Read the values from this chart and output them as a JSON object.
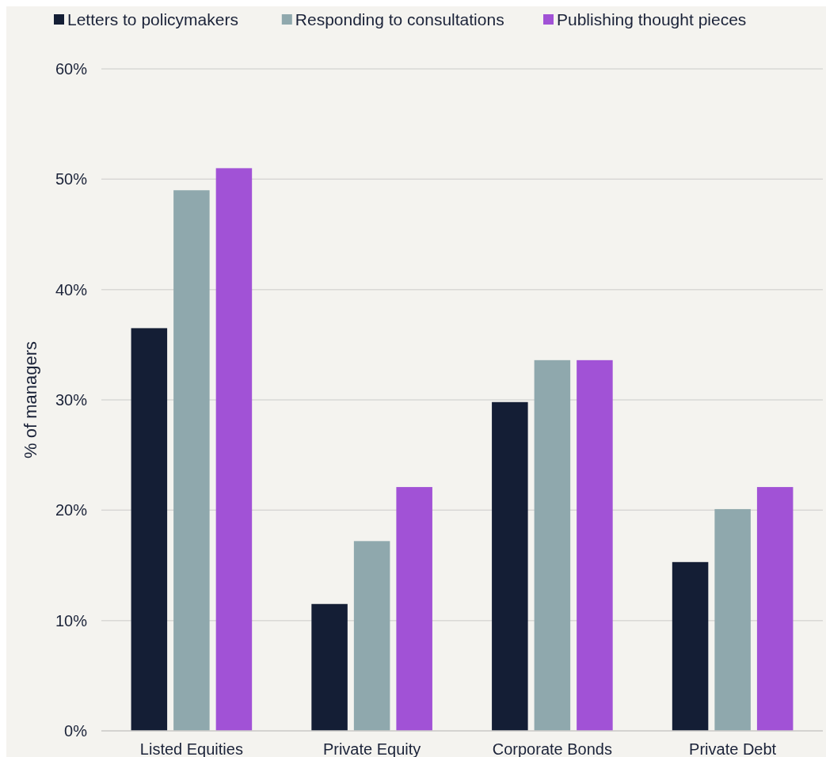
{
  "chart_data": {
    "type": "bar",
    "ylabel": "% of managers",
    "categories": [
      "Listed Equities",
      "Private Equity",
      "Corporate Bonds",
      "Private Debt"
    ],
    "series": [
      {
        "name": "Letters to policymakers",
        "color": "#141e35",
        "values": [
          36.5,
          11.5,
          29.8,
          15.3
        ]
      },
      {
        "name": "Responding to consultations",
        "color": "#8fa8ad",
        "values": [
          49.0,
          17.2,
          33.6,
          20.1
        ]
      },
      {
        "name": "Publishing thought pieces",
        "color": "#a152d6",
        "values": [
          51.0,
          22.1,
          33.6,
          22.1
        ]
      }
    ],
    "ylim": [
      0,
      60
    ],
    "yticks": [
      {
        "value": 0,
        "label": "0%"
      },
      {
        "value": 10,
        "label": "10%"
      },
      {
        "value": 20,
        "label": "20%"
      },
      {
        "value": 30,
        "label": "30%"
      },
      {
        "value": 40,
        "label": "40%"
      },
      {
        "value": 50,
        "label": "50%"
      },
      {
        "value": 60,
        "label": "60%"
      }
    ],
    "grid": "y",
    "legend": "top"
  }
}
